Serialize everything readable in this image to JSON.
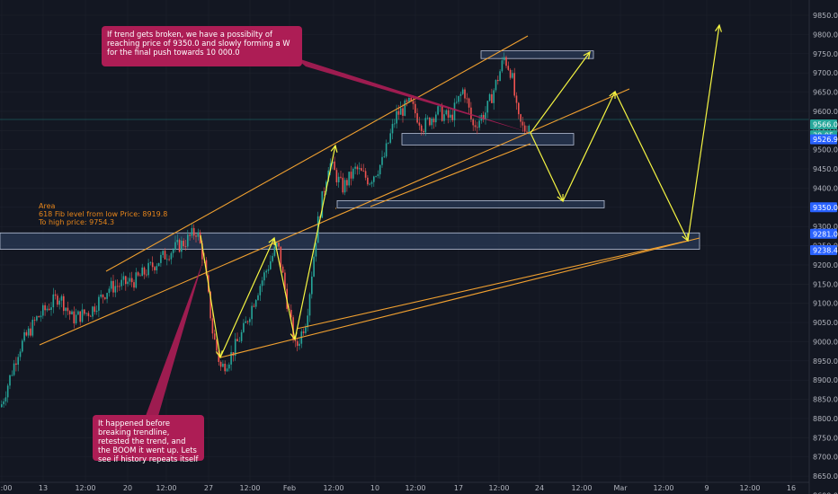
{
  "chart_data": {
    "type": "candlestick",
    "instrument_price_axis": {
      "ticks": [
        "9850.0",
        "9800.0",
        "9750.0",
        "9700.0",
        "9650.0",
        "9600.0",
        "9550.0",
        "9500.0",
        "9450.0",
        "9400.0",
        "9350.0",
        "9300.0",
        "9250.0",
        "9200.0",
        "9150.0",
        "9100.0",
        "9050.0",
        "9000.0",
        "8950.0",
        "8900.0",
        "8850.0",
        "8800.0",
        "8750.0",
        "8700.0",
        "8650.0",
        "8600.0"
      ],
      "range": [
        8590,
        9870
      ]
    },
    "time_axis": {
      "ticks": [
        "12:00",
        "13",
        "12:00",
        "20",
        "12:00",
        "27",
        "12:00",
        "Feb",
        "12:00",
        "10",
        "12:00",
        "17",
        "12:00",
        "24",
        "12:00",
        "Mar",
        "12:00",
        "9",
        "12:00",
        "16"
      ]
    },
    "price_badges": [
      {
        "value": "9566.0",
        "color": "#26a69a"
      },
      {
        "value": "38:05",
        "color": "#26a69a"
      },
      {
        "value": "9526.9",
        "color": "#2962ff"
      },
      {
        "value": "9350.0",
        "color": "#2962ff"
      },
      {
        "value": "9281.0",
        "color": "#2962ff"
      },
      {
        "value": "9238.4",
        "color": "#2962ff"
      }
    ],
    "current_price": 9566.0,
    "annotations": {
      "top_note": "If trend gets broken, we have a possibilty of reaching price of 9350.0 and slowly forming a W for the final push towards 10 000.0",
      "bottom_note": "It happened before breaking trendline, retested the trend, and the BOOM it went up. Lets see if history repeats itself",
      "fib_lines": [
        "Area",
        "618 Fib level from low Price: 8919.8",
        "To high price: 9754.3"
      ]
    },
    "zones": [
      {
        "low": 9238.4,
        "high": 9281.0
      },
      {
        "low": 9350.0,
        "high": 9365.0
      },
      {
        "low": 9510.0,
        "high": 9540.0
      },
      {
        "low": 9735.0,
        "high": 9755.0
      }
    ],
    "colors": {
      "background": "#131722",
      "up": "#26a69a",
      "down": "#ef5350",
      "trendline": "#f0a030",
      "projection": "#f5f542",
      "note": "#ad1d55"
    }
  }
}
